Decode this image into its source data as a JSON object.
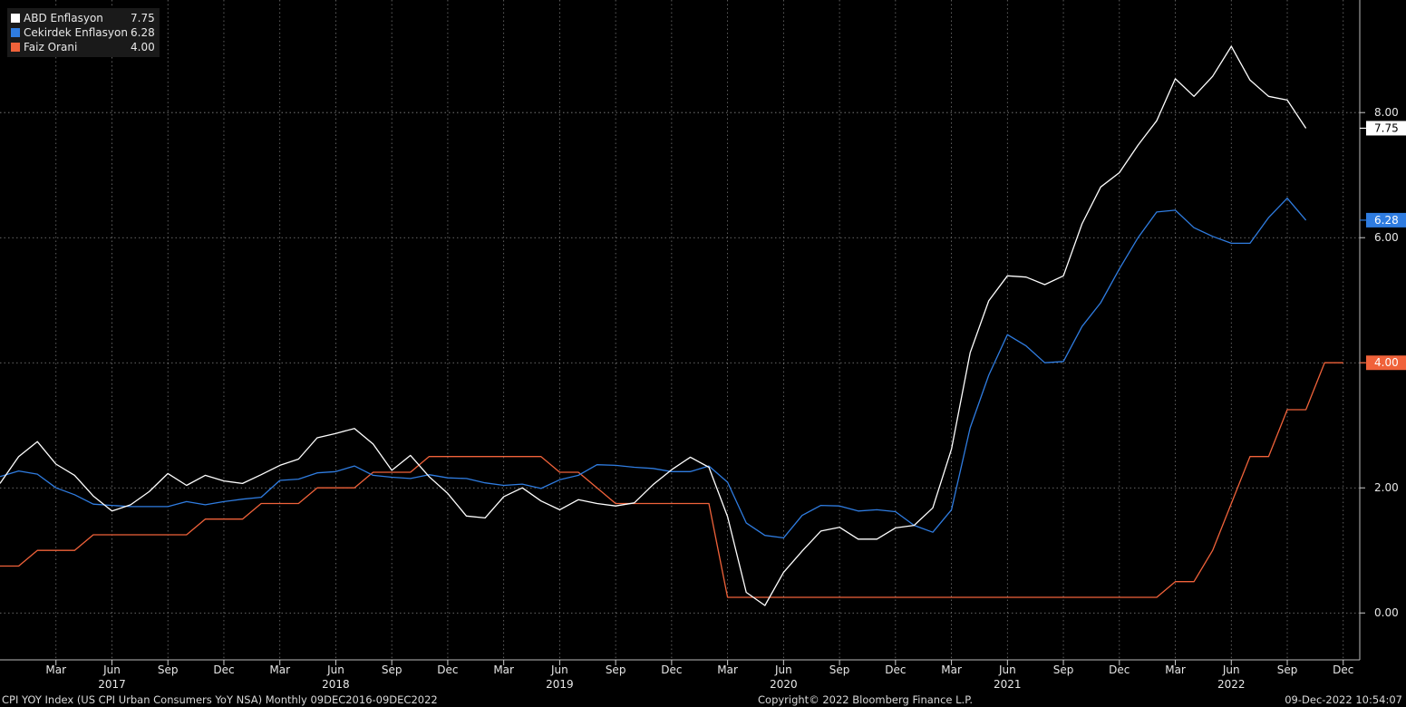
{
  "chart_data": {
    "type": "line",
    "ylim": [
      -0.75,
      9.8
    ],
    "y_ticks": [
      0,
      2,
      4,
      6,
      8
    ],
    "y_tick_labels": [
      "0.00",
      "2.00",
      "4.00",
      "6.00",
      "8.00"
    ],
    "x_start": "2016-12",
    "month_labels": [
      {
        "x": "2017-03",
        "label": "Mar"
      },
      {
        "x": "2017-06",
        "label": "Jun"
      },
      {
        "x": "2017-09",
        "label": "Sep"
      },
      {
        "x": "2017-12",
        "label": "Dec"
      },
      {
        "x": "2018-03",
        "label": "Mar"
      },
      {
        "x": "2018-06",
        "label": "Jun"
      },
      {
        "x": "2018-09",
        "label": "Sep"
      },
      {
        "x": "2018-12",
        "label": "Dec"
      },
      {
        "x": "2019-03",
        "label": "Mar"
      },
      {
        "x": "2019-06",
        "label": "Jun"
      },
      {
        "x": "2019-09",
        "label": "Sep"
      },
      {
        "x": "2019-12",
        "label": "Dec"
      },
      {
        "x": "2020-03",
        "label": "Mar"
      },
      {
        "x": "2020-06",
        "label": "Jun"
      },
      {
        "x": "2020-09",
        "label": "Sep"
      },
      {
        "x": "2020-12",
        "label": "Dec"
      },
      {
        "x": "2021-03",
        "label": "Mar"
      },
      {
        "x": "2021-06",
        "label": "Jun"
      },
      {
        "x": "2021-09",
        "label": "Sep"
      },
      {
        "x": "2021-12",
        "label": "Dec"
      },
      {
        "x": "2022-03",
        "label": "Mar"
      },
      {
        "x": "2022-06",
        "label": "Jun"
      },
      {
        "x": "2022-09",
        "label": "Sep"
      },
      {
        "x": "2022-12",
        "label": "Dec"
      }
    ],
    "year_labels": [
      {
        "x": "2017-06",
        "label": "2017"
      },
      {
        "x": "2018-06",
        "label": "2018"
      },
      {
        "x": "2019-06",
        "label": "2019"
      },
      {
        "x": "2020-06",
        "label": "2020"
      },
      {
        "x": "2021-06",
        "label": "2021"
      },
      {
        "x": "2022-06",
        "label": "2022"
      }
    ],
    "series": [
      {
        "name": "ABD Enflasyon",
        "last": "7.75",
        "color": "#ffffff",
        "x_first": "2016-12",
        "values": [
          2.07,
          2.5,
          2.74,
          2.38,
          2.2,
          1.87,
          1.63,
          1.73,
          1.94,
          2.23,
          2.04,
          2.2,
          2.11,
          2.07,
          2.21,
          2.36,
          2.46,
          2.8,
          2.87,
          2.95,
          2.7,
          2.28,
          2.52,
          2.18,
          1.91,
          1.55,
          1.52,
          1.86,
          2.0,
          1.79,
          1.65,
          1.81,
          1.75,
          1.71,
          1.76,
          2.05,
          2.29,
          2.49,
          2.33,
          1.54,
          0.33,
          0.12,
          0.65,
          0.99,
          1.31,
          1.37,
          1.18,
          1.18,
          1.36,
          1.4,
          1.68,
          2.62,
          4.16,
          4.99,
          5.39,
          5.37,
          5.25,
          5.39,
          6.22,
          6.81,
          7.04,
          7.48,
          7.87,
          8.54,
          8.26,
          8.58,
          9.06,
          8.52,
          8.26,
          8.2,
          7.75
        ]
      },
      {
        "name": "Cekirdek Enflasyon",
        "last": "6.28",
        "color": "#2f7ce0",
        "x_first": "2016-12",
        "values": [
          2.18,
          2.27,
          2.22,
          2.0,
          1.89,
          1.74,
          1.72,
          1.7,
          1.7,
          1.7,
          1.78,
          1.73,
          1.78,
          1.82,
          1.85,
          2.12,
          2.14,
          2.24,
          2.26,
          2.35,
          2.2,
          2.17,
          2.15,
          2.21,
          2.16,
          2.15,
          2.08,
          2.04,
          2.06,
          1.99,
          2.13,
          2.2,
          2.37,
          2.36,
          2.33,
          2.31,
          2.26,
          2.26,
          2.35,
          2.09,
          1.44,
          1.24,
          1.2,
          1.56,
          1.72,
          1.71,
          1.63,
          1.65,
          1.62,
          1.4,
          1.29,
          1.65,
          2.96,
          3.8,
          4.45,
          4.27,
          4.0,
          4.02,
          4.58,
          4.96,
          5.5,
          6.0,
          6.41,
          6.44,
          6.16,
          6.02,
          5.91,
          5.91,
          6.32,
          6.63,
          6.28
        ]
      },
      {
        "name": "Faiz Orani",
        "last": "4.00",
        "color": "#f0623a",
        "x_first": "2016-12",
        "values": [
          0.75,
          0.75,
          1.0,
          1.0,
          1.0,
          1.25,
          1.25,
          1.25,
          1.25,
          1.25,
          1.25,
          1.5,
          1.5,
          1.5,
          1.75,
          1.75,
          1.75,
          2.0,
          2.0,
          2.0,
          2.25,
          2.25,
          2.25,
          2.5,
          2.5,
          2.5,
          2.5,
          2.5,
          2.5,
          2.5,
          2.25,
          2.25,
          2.0,
          1.75,
          1.75,
          1.75,
          1.75,
          1.75,
          1.75,
          0.25,
          0.25,
          0.25,
          0.25,
          0.25,
          0.25,
          0.25,
          0.25,
          0.25,
          0.25,
          0.25,
          0.25,
          0.25,
          0.25,
          0.25,
          0.25,
          0.25,
          0.25,
          0.25,
          0.25,
          0.25,
          0.25,
          0.25,
          0.25,
          0.5,
          0.5,
          1.0,
          1.75,
          2.5,
          2.5,
          3.25,
          3.25,
          4.0,
          4.0
        ]
      }
    ],
    "grid": true
  },
  "footer": {
    "left": "CPI YOY Index (US CPI Urban Consumers YoY NSA)  Monthly 09DEC2016-09DEC2022",
    "center": "Copyright© 2022 Bloomberg Finance L.P.",
    "right": "09-Dec-2022 10:54:07"
  }
}
